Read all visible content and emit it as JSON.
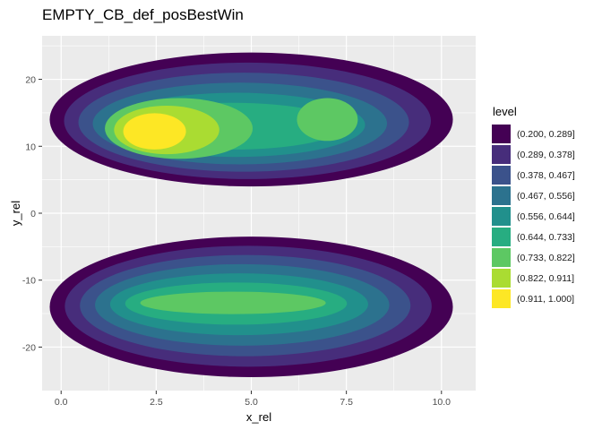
{
  "chart_data": {
    "type": "density_contour",
    "title": "EMPTY_CB_def_posBestWin",
    "xlabel": "x_rel",
    "ylabel": "y_rel",
    "xlim": [
      -0.5,
      10.9
    ],
    "ylim": [
      -26.5,
      26.5
    ],
    "x_ticks": [
      "0.0",
      "2.5",
      "5.0",
      "7.5",
      "10.0"
    ],
    "x_tick_values": [
      0,
      2.5,
      5,
      7.5,
      10
    ],
    "y_ticks": [
      "20",
      "10",
      "0",
      "-10",
      "-20"
    ],
    "y_tick_values": [
      20,
      10,
      0,
      -10,
      -20
    ],
    "grid": true,
    "legend_title": "level",
    "legend_position": "right",
    "levels": [
      {
        "label": "(0.200, 0.289]",
        "color": "#440154"
      },
      {
        "label": "(0.289, 0.378]",
        "color": "#472D7B"
      },
      {
        "label": "(0.378, 0.467]",
        "color": "#3B528B"
      },
      {
        "label": "(0.467, 0.556]",
        "color": "#2C728E"
      },
      {
        "label": "(0.556, 0.644]",
        "color": "#21908C"
      },
      {
        "label": "(0.644, 0.733]",
        "color": "#27AD81"
      },
      {
        "label": "(0.733, 0.822]",
        "color": "#5DC863"
      },
      {
        "label": "(0.822, 0.911]",
        "color": "#AADC32"
      },
      {
        "label": "(0.911, 1.000]",
        "color": "#FDE725"
      }
    ],
    "regions": [
      {
        "name": "upper",
        "x_center": 5.0,
        "y_center": 14.0,
        "x_halfwidth": 5.3,
        "y_halfwidth": 10.0,
        "peak": {
          "x": 2.4,
          "y": 12
        },
        "secondary_peak": {
          "x": 7.0,
          "y": 14
        }
      },
      {
        "name": "lower",
        "x_center": 5.0,
        "y_center": -14.0,
        "x_halfwidth": 5.3,
        "y_halfwidth": 10.5,
        "peak": {
          "x": 3.0,
          "y": -12
        }
      }
    ]
  },
  "panel_bg": "#EBEBEB",
  "grid_color": "#FFFFFF"
}
